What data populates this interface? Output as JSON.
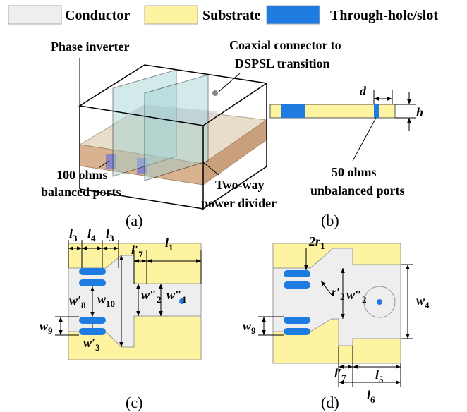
{
  "legend": [
    {
      "label": "Conductor",
      "color": "#eeeeee"
    },
    {
      "label": "Substrate",
      "color": "#fdf3a0"
    },
    {
      "label": "Through-hole/slot",
      "color": "#1e7be0"
    }
  ],
  "figure_a": {
    "caption": "(a)",
    "labels": [
      "Phase inverter",
      "Coaxial connector to",
      "DSPSL transition",
      "100 ohms",
      "balanced ports",
      "Two-way",
      "power divider"
    ]
  },
  "figure_b": {
    "caption": "(b)",
    "dimensions": [
      {
        "base": "d"
      },
      {
        "base": "h"
      }
    ],
    "labels": [
      "50 ohms",
      "unbalanced ports"
    ]
  },
  "figure_c": {
    "caption": "(c)",
    "dimensions": [
      {
        "base": "l",
        "sub": "3"
      },
      {
        "base": "l",
        "sub": "4"
      },
      {
        "base": "l",
        "sub": "3"
      },
      {
        "base": "l′",
        "sub": "7"
      },
      {
        "base": "l",
        "sub": "1"
      },
      {
        "base": "w′",
        "sub": "8"
      },
      {
        "base": "w",
        "sub": "10"
      },
      {
        "base": "w″",
        "sub": "2"
      },
      {
        "base": "w″",
        "sub": "1"
      },
      {
        "base": "w",
        "sub": "9"
      },
      {
        "base": "w′",
        "sub": "3"
      }
    ]
  },
  "figure_d": {
    "caption": "(d)",
    "dimensions": [
      {
        "base": "2r",
        "sub": "1"
      },
      {
        "base": "r′",
        "sub": "2"
      },
      {
        "base": "w″",
        "sub": "2"
      },
      {
        "base": "w",
        "sub": "4"
      },
      {
        "base": "w",
        "sub": "9"
      },
      {
        "base": "l′",
        "sub": "7"
      },
      {
        "base": "l",
        "sub": "5"
      },
      {
        "base": "l",
        "sub": "6"
      }
    ]
  }
}
